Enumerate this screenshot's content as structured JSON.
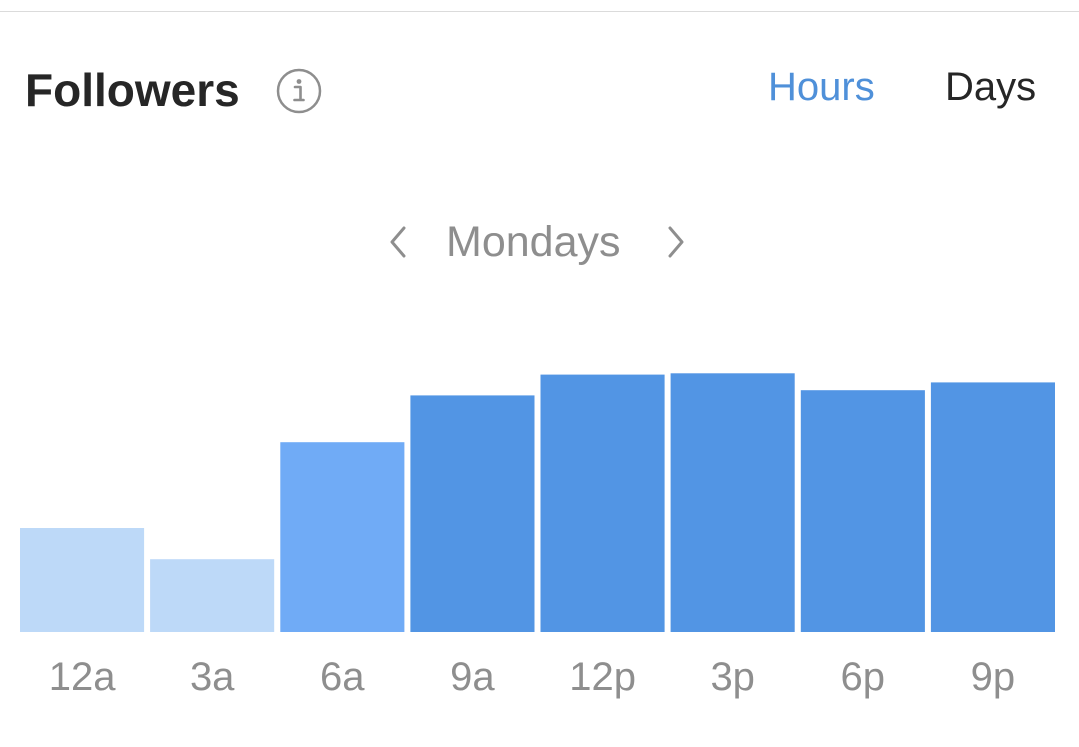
{
  "header": {
    "title": "Followers",
    "info_icon": "info-circle-icon",
    "tabs": [
      {
        "label": "Hours",
        "active": true
      },
      {
        "label": "Days",
        "active": false
      }
    ]
  },
  "navigator": {
    "label": "Mondays",
    "prev_icon": "chevron-left-icon",
    "next_icon": "chevron-right-icon"
  },
  "colors": {
    "active_tab": "#4f90d9",
    "text_dark": "#262626",
    "text_muted": "#8e8e8e",
    "bar_light": "#bdd9f8",
    "bar_medium": "#70abf6",
    "bar_dark": "#5295e4"
  },
  "chart_data": {
    "type": "bar",
    "categories": [
      "12a",
      "3a",
      "6a",
      "9a",
      "12p",
      "3p",
      "6p",
      "9p"
    ],
    "values": [
      40,
      28,
      73,
      91,
      99,
      99.5,
      93,
      96
    ],
    "shade_levels": [
      "light",
      "light",
      "medium",
      "dark",
      "dark",
      "dark",
      "dark",
      "dark"
    ],
    "ylim": [
      0,
      100
    ],
    "title": "",
    "xlabel": "",
    "ylabel": "",
    "grid": false,
    "legend": "none"
  }
}
